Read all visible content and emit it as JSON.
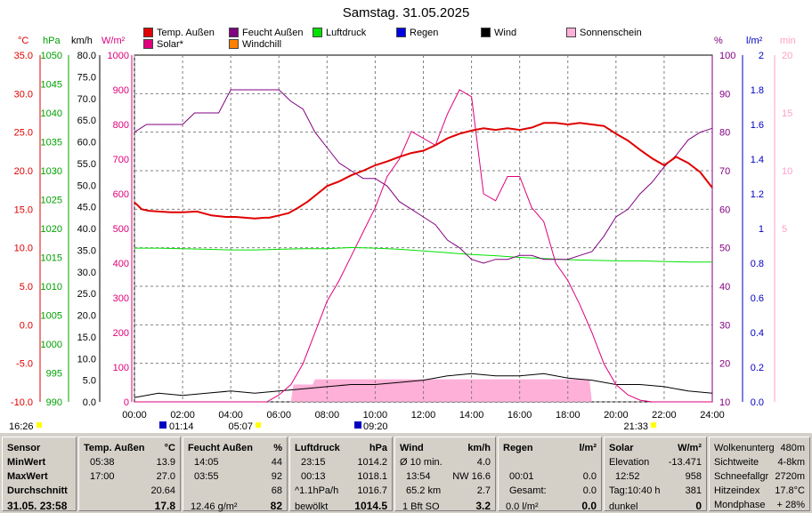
{
  "title": "Samstag. 31.05.2025",
  "legend": [
    {
      "label": "Temp. Außen",
      "color": "#e00000"
    },
    {
      "label": "Feucht Außen",
      "color": "#800080"
    },
    {
      "label": "Luftdruck",
      "color": "#00e000"
    },
    {
      "label": "Regen",
      "color": "#0000e0"
    },
    {
      "label": "Wind",
      "color": "#000000"
    },
    {
      "label": "Sonnenschein",
      "color": "#ffb0d8"
    },
    {
      "label": "Solar*",
      "color": "#e0007a"
    },
    {
      "label": "Windchill",
      "color": "#ff8000"
    }
  ],
  "units": {
    "temp": "°C",
    "pressure": "hPa",
    "wind": "km/h",
    "solar": "W/m²",
    "humidity": "%",
    "rain": "l/m²",
    "sun": "min"
  },
  "axes": {
    "temp": [
      "35.0",
      "30.0",
      "25.0",
      "20.0",
      "15.0",
      "10.0",
      "5.0",
      "0.0",
      "-5.0",
      "-10.0"
    ],
    "pressure": [
      "1050",
      "1045",
      "1040",
      "1035",
      "1030",
      "1025",
      "1020",
      "1015",
      "1010",
      "1005",
      "1000",
      "995",
      "990"
    ],
    "wind": [
      "80.0",
      "75.0",
      "70.0",
      "65.0",
      "60.0",
      "55.0",
      "50.0",
      "45.0",
      "40.0",
      "35.0",
      "30.0",
      "25.0",
      "20.0",
      "15.0",
      "10.0",
      "5.0",
      "0.0"
    ],
    "solar": [
      "1000",
      "900",
      "800",
      "700",
      "600",
      "500",
      "400",
      "300",
      "200",
      "100",
      "0"
    ],
    "humidity": [
      "100",
      "90",
      "80",
      "70",
      "60",
      "50",
      "40",
      "30",
      "20",
      "10"
    ],
    "rain": [
      "2",
      "1.8",
      "1.6",
      "1.4",
      "1.2",
      "1",
      "0.8",
      "0.6",
      "0.4",
      "0.2",
      "0.0"
    ],
    "sun": [
      "20",
      "15",
      "10",
      "5"
    ],
    "time": [
      "00:00",
      "02:00",
      "04:00",
      "06:00",
      "08:00",
      "10:00",
      "12:00",
      "14:00",
      "16:00",
      "18:00",
      "20:00",
      "22:00",
      "24:00"
    ]
  },
  "events": {
    "moonset": "16:26",
    "moonrise": "01:14",
    "sunrise": "05:07",
    "sun_noon": "09:20",
    "sunset": "21:33"
  },
  "chart_data": {
    "type": "line",
    "x_unit": "hours",
    "xlim": [
      0,
      24
    ],
    "series": [
      {
        "name": "Temp. Außen",
        "unit": "°C",
        "points": [
          [
            0,
            15.9
          ],
          [
            0.3,
            15.0
          ],
          [
            0.6,
            14.8
          ],
          [
            1,
            14.7
          ],
          [
            1.5,
            14.6
          ],
          [
            2,
            14.6
          ],
          [
            2.6,
            14.7
          ],
          [
            3.2,
            14.2
          ],
          [
            3.8,
            14.0
          ],
          [
            4.2,
            14.0
          ],
          [
            4.6,
            13.9
          ],
          [
            5,
            13.8
          ],
          [
            5.4,
            13.9
          ],
          [
            5.6,
            13.9
          ],
          [
            6,
            14.2
          ],
          [
            6.4,
            14.5
          ],
          [
            6.8,
            15.2
          ],
          [
            7.2,
            16.0
          ],
          [
            7.6,
            17.0
          ],
          [
            8,
            18.0
          ],
          [
            8.5,
            18.6
          ],
          [
            9,
            19.4
          ],
          [
            9.5,
            20.0
          ],
          [
            10,
            20.7
          ],
          [
            10.5,
            21.2
          ],
          [
            11,
            21.8
          ],
          [
            11.5,
            22.3
          ],
          [
            12,
            22.6
          ],
          [
            12.5,
            23.3
          ],
          [
            13,
            24.2
          ],
          [
            13.5,
            24.8
          ],
          [
            14,
            25.2
          ],
          [
            14.5,
            25.5
          ],
          [
            15,
            25.3
          ],
          [
            15.5,
            25.5
          ],
          [
            16,
            25.3
          ],
          [
            16.5,
            25.6
          ],
          [
            17,
            26.2
          ],
          [
            17.5,
            26.2
          ],
          [
            18,
            26.0
          ],
          [
            18.5,
            26.2
          ],
          [
            19,
            26.0
          ],
          [
            19.5,
            25.8
          ],
          [
            20,
            24.8
          ],
          [
            20.5,
            23.9
          ],
          [
            21,
            22.7
          ],
          [
            21.5,
            21.6
          ],
          [
            22,
            20.7
          ],
          [
            22.5,
            21.8
          ],
          [
            23,
            21.0
          ],
          [
            23.5,
            19.8
          ],
          [
            24,
            17.8
          ]
        ]
      },
      {
        "name": "Feucht Außen",
        "unit": "%",
        "points": [
          [
            0,
            80
          ],
          [
            0.5,
            82
          ],
          [
            1,
            82
          ],
          [
            1.5,
            82
          ],
          [
            2,
            82
          ],
          [
            2.5,
            85
          ],
          [
            3,
            85
          ],
          [
            3.5,
            85
          ],
          [
            4,
            91
          ],
          [
            4.5,
            91
          ],
          [
            5,
            91
          ],
          [
            5.5,
            91
          ],
          [
            6,
            91
          ],
          [
            6.5,
            88
          ],
          [
            7,
            86
          ],
          [
            7.5,
            80
          ],
          [
            8,
            76
          ],
          [
            8.5,
            72
          ],
          [
            9,
            70
          ],
          [
            9.5,
            68
          ],
          [
            10,
            68
          ],
          [
            10.5,
            66
          ],
          [
            11,
            62
          ],
          [
            11.5,
            60
          ],
          [
            12,
            58
          ],
          [
            12.5,
            56
          ],
          [
            13,
            52
          ],
          [
            13.5,
            50
          ],
          [
            14,
            47
          ],
          [
            14.5,
            46
          ],
          [
            15,
            47
          ],
          [
            15.5,
            47
          ],
          [
            16,
            48
          ],
          [
            16.5,
            48
          ],
          [
            17,
            47
          ],
          [
            17.5,
            47
          ],
          [
            18,
            47
          ],
          [
            18.5,
            48
          ],
          [
            19,
            49
          ],
          [
            19.5,
            53
          ],
          [
            20,
            58
          ],
          [
            20.5,
            60
          ],
          [
            21,
            64
          ],
          [
            21.5,
            67
          ],
          [
            22,
            71
          ],
          [
            22.5,
            74
          ],
          [
            23,
            78
          ],
          [
            23.5,
            80
          ],
          [
            24,
            81
          ]
        ]
      },
      {
        "name": "Luftdruck",
        "unit": "hPa",
        "points": [
          [
            0,
            1016.6
          ],
          [
            1,
            1016.6
          ],
          [
            2,
            1016.5
          ],
          [
            3,
            1016.4
          ],
          [
            4,
            1016.3
          ],
          [
            5,
            1016.3
          ],
          [
            6,
            1016.4
          ],
          [
            7,
            1016.5
          ],
          [
            8,
            1016.5
          ],
          [
            9,
            1016.7
          ],
          [
            10,
            1016.6
          ],
          [
            11,
            1016.4
          ],
          [
            12,
            1016.1
          ],
          [
            13,
            1015.8
          ],
          [
            14,
            1015.5
          ],
          [
            15,
            1015.3
          ],
          [
            16,
            1015.0
          ],
          [
            17,
            1014.8
          ],
          [
            18,
            1014.6
          ],
          [
            19,
            1014.5
          ],
          [
            20,
            1014.4
          ],
          [
            21,
            1014.4
          ],
          [
            22,
            1014.3
          ],
          [
            23,
            1014.2
          ],
          [
            24,
            1014.2
          ]
        ]
      },
      {
        "name": "Solar*",
        "unit": "W/m²",
        "points": [
          [
            0,
            0
          ],
          [
            5.5,
            0
          ],
          [
            6,
            20
          ],
          [
            6.5,
            50
          ],
          [
            7,
            110
          ],
          [
            7.5,
            200
          ],
          [
            8,
            290
          ],
          [
            8.5,
            350
          ],
          [
            9,
            420
          ],
          [
            9.5,
            490
          ],
          [
            10,
            560
          ],
          [
            10.5,
            650
          ],
          [
            11,
            700
          ],
          [
            11.5,
            780
          ],
          [
            12,
            760
          ],
          [
            12.5,
            740
          ],
          [
            13,
            830
          ],
          [
            13.5,
            900
          ],
          [
            14,
            880
          ],
          [
            14.5,
            600
          ],
          [
            15,
            580
          ],
          [
            15.5,
            650
          ],
          [
            16,
            650
          ],
          [
            16.5,
            560
          ],
          [
            17,
            520
          ],
          [
            17.5,
            400
          ],
          [
            18,
            350
          ],
          [
            18.5,
            280
          ],
          [
            19,
            200
          ],
          [
            19.5,
            110
          ],
          [
            20,
            50
          ],
          [
            20.5,
            20
          ],
          [
            21,
            5
          ],
          [
            21.5,
            0
          ],
          [
            24,
            0
          ]
        ]
      },
      {
        "name": "Wind",
        "unit": "km/h",
        "points": [
          [
            0,
            1
          ],
          [
            1,
            2
          ],
          [
            2,
            1.5
          ],
          [
            3,
            2
          ],
          [
            4,
            2.5
          ],
          [
            5,
            2
          ],
          [
            6,
            2.5
          ],
          [
            7,
            3
          ],
          [
            8,
            3.5
          ],
          [
            9,
            4
          ],
          [
            10,
            4
          ],
          [
            11,
            4.5
          ],
          [
            12,
            5
          ],
          [
            13,
            6
          ],
          [
            14,
            6.5
          ],
          [
            15,
            6
          ],
          [
            16,
            6
          ],
          [
            17,
            6.5
          ],
          [
            18,
            5.5
          ],
          [
            19,
            5
          ],
          [
            20,
            4
          ],
          [
            21,
            4
          ],
          [
            22,
            3.5
          ],
          [
            23,
            2.5
          ],
          [
            24,
            2
          ]
        ]
      },
      {
        "name": "Sonnenschein",
        "unit": "min",
        "points": [
          [
            0,
            0
          ],
          [
            6.5,
            0
          ],
          [
            6.6,
            1
          ],
          [
            7.4,
            1
          ],
          [
            7.5,
            1.3
          ],
          [
            18.9,
            1.3
          ],
          [
            19,
            0
          ],
          [
            24,
            0
          ]
        ]
      }
    ]
  },
  "stats": {
    "sensor": {
      "title": "Sensor",
      "rows": [
        "MinWert",
        "MaxWert",
        "Durchschnitt"
      ],
      "footer": "31.05. 23:58"
    },
    "temp": {
      "title": "Temp. Außen",
      "unit": "°C",
      "min_time": "05:38",
      "min": "13.9",
      "max_time": "17:00",
      "max": "27.0",
      "avg": "20.64",
      "current": "17.8"
    },
    "humidity": {
      "title": "Feucht Außen",
      "unit": "%",
      "min_time": "14:05",
      "min": "44",
      "max_time": "03:55",
      "max": "92",
      "avg": "68",
      "footer_left": "12.46 g/m²",
      "current": "82"
    },
    "pressure": {
      "title": "Luftdruck",
      "unit": "hPa",
      "min_time": "23:15",
      "min": "1014.2",
      "max_time": "00:13",
      "max": "1018.1",
      "avg_label": "^1.1hPa/h",
      "avg": "1016.7",
      "footer_left": "bewölkt",
      "current": "1014.5"
    },
    "wind": {
      "title": "Wind",
      "unit": "km/h",
      "r1_left": "Ø 10 min.",
      "r1": "4.0",
      "r2_left": "13:54",
      "r2": "NW 16.6",
      "r3_left": "65.2 km",
      "r3": "2.7",
      "footer_left": "1 Bft SO",
      "current": "3.2"
    },
    "rain": {
      "title": "Regen",
      "unit": "l/m²",
      "r2_left": "00:01",
      "r2": "0.0",
      "r3_left": "Gesamt:",
      "r3": "0.0",
      "footer_left": "0.0 l/m²",
      "current": "0.0"
    },
    "solar": {
      "title": "Solar",
      "unit": "W/m²",
      "r1_left": "Elevation",
      "r1": "-13.471",
      "r2_left": "12:52",
      "r2": "958",
      "r3_left": "Tag:10:40 h",
      "r3": "381",
      "footer_left": "dunkel",
      "current": "0"
    },
    "misc": [
      [
        "Wolkenunterg",
        "480m"
      ],
      [
        "Sichtweite",
        "4-8km"
      ],
      [
        "Schneefallgr",
        "2720m"
      ],
      [
        "Hitzeindex",
        "17.8°C"
      ],
      [
        "Mondphase",
        "+ 28%"
      ]
    ]
  }
}
